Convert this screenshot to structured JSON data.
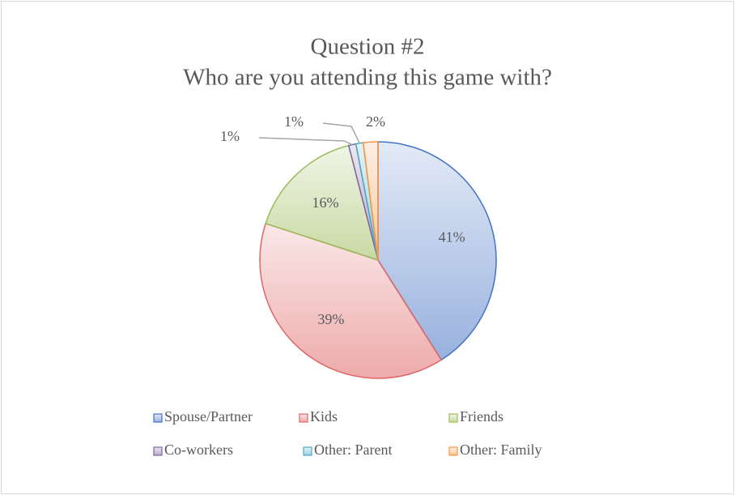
{
  "chart_data": {
    "type": "pie",
    "title": "Question #2",
    "subtitle": "Who are you attending this game with?",
    "categories": [
      "Spouse/Partner",
      "Kids",
      "Friends",
      "Co-workers",
      "Other: Parent",
      "Other: Family"
    ],
    "values": [
      41,
      39,
      16,
      1,
      1,
      2
    ],
    "value_labels": [
      "41%",
      "39%",
      "16%",
      "1%",
      "1%",
      "2%"
    ],
    "colors": [
      "#4472c4",
      "#e06666",
      "#9bbb59",
      "#8064a2",
      "#4bacc6",
      "#f79646"
    ],
    "legend": "bottom"
  }
}
